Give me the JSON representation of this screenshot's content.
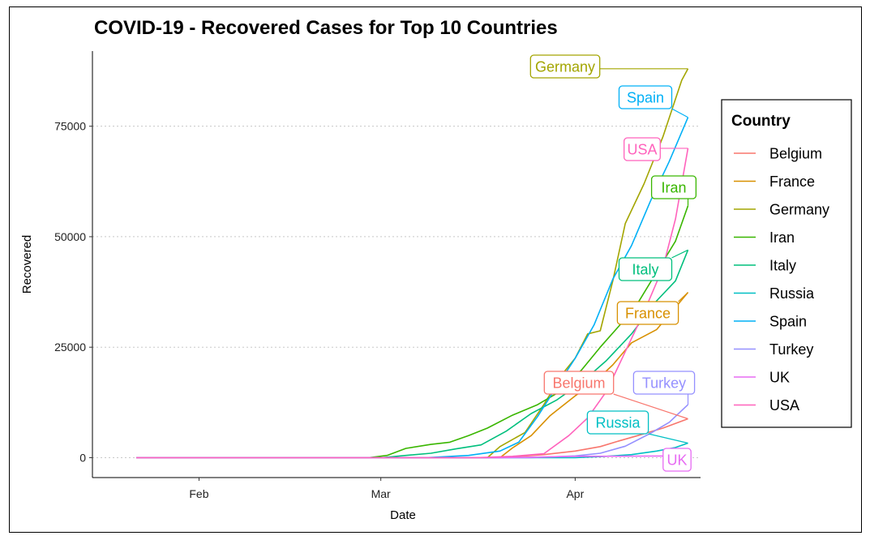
{
  "chart_data": {
    "type": "line",
    "title": "COVID-19 - Recovered Cases for Top 10 Countries",
    "xlabel": "Date",
    "ylabel": "Recovered",
    "x_ticks": [
      "Feb",
      "Mar",
      "Apr"
    ],
    "y_ticks": [
      "0",
      "25000",
      "50000",
      "75000"
    ],
    "ylim": [
      -4500,
      92000
    ],
    "xlim": [
      "2020-01-15",
      "2020-04-21"
    ],
    "grid": "horizontal dotted",
    "legend": {
      "title": "Country",
      "placement": "right"
    },
    "series": [
      {
        "name": "Belgium",
        "color": "#F8766D",
        "label": "Belgium",
        "points": [
          [
            "2020-01-22",
            0
          ],
          [
            "2020-03-20",
            0
          ],
          [
            "2020-03-27",
            700
          ],
          [
            "2020-04-01",
            1500
          ],
          [
            "2020-04-05",
            2500
          ],
          [
            "2020-04-08",
            3800
          ],
          [
            "2020-04-11",
            5000
          ],
          [
            "2020-04-15",
            6700
          ],
          [
            "2020-04-19",
            8800
          ]
        ]
      },
      {
        "name": "France",
        "color": "#D89000",
        "label": "France",
        "points": [
          [
            "2020-01-22",
            0
          ],
          [
            "2020-03-20",
            0
          ],
          [
            "2020-03-22",
            2200
          ],
          [
            "2020-03-25",
            5000
          ],
          [
            "2020-03-28",
            9500
          ],
          [
            "2020-04-01",
            14000
          ],
          [
            "2020-04-04",
            17000
          ],
          [
            "2020-04-07",
            21000
          ],
          [
            "2020-04-10",
            26000
          ],
          [
            "2020-04-14",
            29000
          ],
          [
            "2020-04-17",
            34000
          ],
          [
            "2020-04-19",
            37400
          ]
        ]
      },
      {
        "name": "Germany",
        "color": "#A3A500",
        "label": "Germany",
        "points": [
          [
            "2020-01-22",
            0
          ],
          [
            "2020-03-18",
            0
          ],
          [
            "2020-03-20",
            2500
          ],
          [
            "2020-03-24",
            5700
          ],
          [
            "2020-03-27",
            12000
          ],
          [
            "2020-03-30",
            19000
          ],
          [
            "2020-04-01",
            22500
          ],
          [
            "2020-04-03",
            28000
          ],
          [
            "2020-04-05",
            28700
          ],
          [
            "2020-04-07",
            40000
          ],
          [
            "2020-04-09",
            53000
          ],
          [
            "2020-04-12",
            62000
          ],
          [
            "2020-04-15",
            72600
          ],
          [
            "2020-04-18",
            85400
          ],
          [
            "2020-04-19",
            88000
          ]
        ]
      },
      {
        "name": "Iran",
        "color": "#39B600",
        "label": "Iran",
        "points": [
          [
            "2020-01-22",
            0
          ],
          [
            "2020-02-28",
            0
          ],
          [
            "2020-03-02",
            500
          ],
          [
            "2020-03-05",
            2100
          ],
          [
            "2020-03-09",
            3000
          ],
          [
            "2020-03-12",
            3500
          ],
          [
            "2020-03-15",
            5000
          ],
          [
            "2020-03-18",
            6700
          ],
          [
            "2020-03-22",
            9600
          ],
          [
            "2020-03-26",
            12000
          ],
          [
            "2020-03-29",
            14500
          ],
          [
            "2020-04-02",
            19800
          ],
          [
            "2020-04-05",
            25000
          ],
          [
            "2020-04-08",
            29800
          ],
          [
            "2020-04-11",
            35000
          ],
          [
            "2020-04-14",
            42000
          ],
          [
            "2020-04-17",
            49000
          ],
          [
            "2020-04-19",
            57000
          ]
        ]
      },
      {
        "name": "Italy",
        "color": "#00BF7D",
        "label": "Italy",
        "points": [
          [
            "2020-01-22",
            0
          ],
          [
            "2020-03-01",
            0
          ],
          [
            "2020-03-05",
            500
          ],
          [
            "2020-03-09",
            1000
          ],
          [
            "2020-03-13",
            2000
          ],
          [
            "2020-03-17",
            2900
          ],
          [
            "2020-03-21",
            6000
          ],
          [
            "2020-03-25",
            10000
          ],
          [
            "2020-03-29",
            13000
          ],
          [
            "2020-04-02",
            17000
          ],
          [
            "2020-04-06",
            22000
          ],
          [
            "2020-04-10",
            28000
          ],
          [
            "2020-04-14",
            35500
          ],
          [
            "2020-04-17",
            40000
          ],
          [
            "2020-04-19",
            47000
          ]
        ]
      },
      {
        "name": "Russia",
        "color": "#00BFC4",
        "label": "Russia",
        "points": [
          [
            "2020-01-22",
            0
          ],
          [
            "2020-04-01",
            0
          ],
          [
            "2020-04-06",
            300
          ],
          [
            "2020-04-10",
            700
          ],
          [
            "2020-04-14",
            1500
          ],
          [
            "2020-04-17",
            2300
          ],
          [
            "2020-04-19",
            3300
          ]
        ]
      },
      {
        "name": "Spain",
        "color": "#00B0F6",
        "label": "Spain",
        "points": [
          [
            "2020-01-22",
            0
          ],
          [
            "2020-03-08",
            0
          ],
          [
            "2020-03-15",
            500
          ],
          [
            "2020-03-20",
            1500
          ],
          [
            "2020-03-23",
            3500
          ],
          [
            "2020-03-26",
            9300
          ],
          [
            "2020-03-29",
            16000
          ],
          [
            "2020-04-01",
            22500
          ],
          [
            "2020-04-04",
            30000
          ],
          [
            "2020-04-07",
            40400
          ],
          [
            "2020-04-10",
            48000
          ],
          [
            "2020-04-13",
            58000
          ],
          [
            "2020-04-16",
            67000
          ],
          [
            "2020-04-19",
            77000
          ]
        ]
      },
      {
        "name": "Turkey",
        "color": "#9590FF",
        "label": "Turkey",
        "points": [
          [
            "2020-01-22",
            0
          ],
          [
            "2020-03-25",
            0
          ],
          [
            "2020-04-01",
            400
          ],
          [
            "2020-04-05",
            1000
          ],
          [
            "2020-04-09",
            2600
          ],
          [
            "2020-04-13",
            5500
          ],
          [
            "2020-04-16",
            8000
          ],
          [
            "2020-04-19",
            12000
          ]
        ]
      },
      {
        "name": "UK",
        "color": "#E76BF3",
        "label": "UK",
        "points": [
          [
            "2020-01-22",
            0
          ],
          [
            "2020-03-20",
            0
          ],
          [
            "2020-04-01",
            300
          ],
          [
            "2020-04-10",
            350
          ],
          [
            "2020-04-19",
            400
          ]
        ]
      },
      {
        "name": "USA",
        "color": "#FF62BC",
        "label": "USA",
        "points": [
          [
            "2020-01-22",
            0
          ],
          [
            "2020-03-16",
            0
          ],
          [
            "2020-03-22",
            300
          ],
          [
            "2020-03-27",
            900
          ],
          [
            "2020-03-31",
            5000
          ],
          [
            "2020-04-03",
            9000
          ],
          [
            "2020-04-06",
            15000
          ],
          [
            "2020-04-09",
            24000
          ],
          [
            "2020-04-12",
            33000
          ],
          [
            "2020-04-15",
            43000
          ],
          [
            "2020-04-17",
            54000
          ],
          [
            "2020-04-19",
            70000
          ]
        ]
      }
    ]
  }
}
